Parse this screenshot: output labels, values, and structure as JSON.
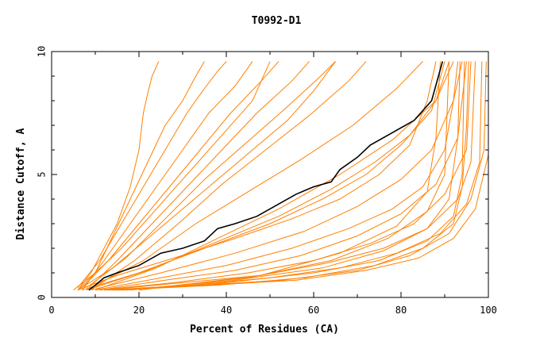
{
  "chart_data": {
    "type": "line",
    "title": "T0992-D1",
    "xlabel": "Percent of Residues (CA)",
    "ylabel": "Distance Cutoff, A",
    "xlim": [
      0,
      100
    ],
    "ylim": [
      0,
      10
    ],
    "xticks": [
      "0",
      "20",
      "40",
      "60",
      "80",
      "100"
    ],
    "yticks": [
      "0",
      "5",
      "10"
    ],
    "grid": false,
    "colors": {
      "background": "#ffffff",
      "series": "#ff8000",
      "highlight": "#000000",
      "axes": "#000000"
    },
    "highlight_series": {
      "points": [
        [
          8.5,
          0.3
        ],
        [
          10,
          0.5
        ],
        [
          12,
          0.8
        ],
        [
          15,
          1.0
        ],
        [
          20,
          1.3
        ],
        [
          25,
          1.8
        ],
        [
          30,
          2.0
        ],
        [
          35,
          2.3
        ],
        [
          38,
          2.8
        ],
        [
          42,
          3.0
        ],
        [
          47,
          3.3
        ],
        [
          52,
          3.8
        ],
        [
          56,
          4.2
        ],
        [
          60,
          4.5
        ],
        [
          64,
          4.7
        ],
        [
          66,
          5.2
        ],
        [
          70,
          5.7
        ],
        [
          73,
          6.2
        ],
        [
          78,
          6.7
        ],
        [
          83,
          7.2
        ],
        [
          87,
          8.0
        ],
        [
          89.5,
          9.6
        ]
      ]
    },
    "series": [
      {
        "points": [
          [
            6,
            0.3
          ],
          [
            9,
            1.0
          ],
          [
            12,
            2.0
          ],
          [
            15,
            3.0
          ],
          [
            18,
            4.5
          ],
          [
            20,
            6.0
          ],
          [
            21,
            7.5
          ],
          [
            22,
            8.3
          ],
          [
            23,
            9.0
          ],
          [
            24.5,
            9.6
          ]
        ]
      },
      {
        "points": [
          [
            6,
            0.3
          ],
          [
            10,
            1.0
          ],
          [
            14,
            2.5
          ],
          [
            18,
            4.0
          ],
          [
            22,
            5.5
          ],
          [
            26,
            7.0
          ],
          [
            30,
            8.0
          ],
          [
            33,
            9.0
          ],
          [
            35,
            9.6
          ]
        ]
      },
      {
        "points": [
          [
            6,
            0.4
          ],
          [
            11,
            1.5
          ],
          [
            16,
            3.0
          ],
          [
            21,
            4.5
          ],
          [
            26,
            6.0
          ],
          [
            31,
            7.5
          ],
          [
            35,
            8.5
          ],
          [
            38,
            9.2
          ],
          [
            40,
            9.6
          ]
        ]
      },
      {
        "points": [
          [
            7,
            0.3
          ],
          [
            12,
            1.5
          ],
          [
            18,
            3.0
          ],
          [
            24,
            4.5
          ],
          [
            30,
            6.0
          ],
          [
            36,
            7.5
          ],
          [
            42,
            8.6
          ],
          [
            46,
            9.6
          ]
        ]
      },
      {
        "points": [
          [
            7,
            0.4
          ],
          [
            13,
            1.5
          ],
          [
            20,
            3.0
          ],
          [
            27,
            4.5
          ],
          [
            34,
            6.0
          ],
          [
            41,
            7.5
          ],
          [
            48,
            8.8
          ],
          [
            52,
            9.6
          ]
        ]
      },
      {
        "points": [
          [
            8,
            0.3
          ],
          [
            15,
            1.5
          ],
          [
            23,
            3.0
          ],
          [
            31,
            4.5
          ],
          [
            39,
            6.0
          ],
          [
            47,
            7.5
          ],
          [
            55,
            8.8
          ],
          [
            59,
            9.6
          ]
        ]
      },
      {
        "points": [
          [
            8,
            0.4
          ],
          [
            17,
            1.6
          ],
          [
            26,
            3.2
          ],
          [
            35,
            4.8
          ],
          [
            44,
            6.2
          ],
          [
            53,
            7.6
          ],
          [
            61,
            8.9
          ],
          [
            65,
            9.6
          ]
        ]
      },
      {
        "points": [
          [
            9,
            0.3
          ],
          [
            19,
            1.5
          ],
          [
            29,
            3.0
          ],
          [
            39,
            4.6
          ],
          [
            49,
            6.0
          ],
          [
            59,
            7.4
          ],
          [
            68,
            8.8
          ],
          [
            72,
            9.6
          ]
        ]
      },
      {
        "points": [
          [
            9,
            0.4
          ],
          [
            21,
            1.5
          ],
          [
            33,
            3.0
          ],
          [
            45,
            4.3
          ],
          [
            57,
            5.6
          ],
          [
            69,
            7.0
          ],
          [
            79,
            8.5
          ],
          [
            85,
            9.6
          ]
        ]
      },
      {
        "points": [
          [
            10,
            0.3
          ],
          [
            24,
            1.2
          ],
          [
            38,
            2.4
          ],
          [
            52,
            3.6
          ],
          [
            66,
            5.0
          ],
          [
            78,
            6.4
          ],
          [
            88,
            8.0
          ],
          [
            92,
            9.6
          ]
        ]
      },
      {
        "points": [
          [
            10,
            0.3
          ],
          [
            25,
            0.8
          ],
          [
            40,
            1.3
          ],
          [
            55,
            2.0
          ],
          [
            68,
            2.8
          ],
          [
            78,
            3.6
          ],
          [
            85,
            4.5
          ],
          [
            90,
            6.0
          ],
          [
            92,
            8.0
          ],
          [
            93,
            9.6
          ]
        ]
      },
      {
        "points": [
          [
            11,
            0.3
          ],
          [
            26,
            0.7
          ],
          [
            42,
            1.1
          ],
          [
            57,
            1.7
          ],
          [
            70,
            2.5
          ],
          [
            80,
            3.4
          ],
          [
            88,
            4.6
          ],
          [
            93,
            6.5
          ],
          [
            95,
            9.6
          ]
        ]
      },
      {
        "points": [
          [
            11,
            0.3
          ],
          [
            28,
            0.6
          ],
          [
            45,
            1.0
          ],
          [
            60,
            1.5
          ],
          [
            73,
            2.2
          ],
          [
            83,
            3.0
          ],
          [
            90,
            4.2
          ],
          [
            95,
            6.0
          ],
          [
            96,
            9.6
          ]
        ]
      },
      {
        "points": [
          [
            12,
            0.3
          ],
          [
            30,
            0.6
          ],
          [
            48,
            0.9
          ],
          [
            63,
            1.4
          ],
          [
            76,
            2.0
          ],
          [
            86,
            2.8
          ],
          [
            93,
            4.0
          ],
          [
            96,
            5.5
          ],
          [
            97,
            9.6
          ]
        ]
      },
      {
        "points": [
          [
            12,
            0.3
          ],
          [
            32,
            0.5
          ],
          [
            50,
            0.8
          ],
          [
            66,
            1.2
          ],
          [
            79,
            1.8
          ],
          [
            89,
            2.6
          ],
          [
            95,
            3.8
          ],
          [
            98,
            5.5
          ],
          [
            98.5,
            9.6
          ]
        ]
      },
      {
        "points": [
          [
            13,
            0.3
          ],
          [
            34,
            0.5
          ],
          [
            53,
            0.7
          ],
          [
            70,
            1.1
          ],
          [
            82,
            1.7
          ],
          [
            91,
            2.6
          ],
          [
            96,
            4.0
          ],
          [
            99,
            6.0
          ],
          [
            99.5,
            9.6
          ]
        ]
      },
      {
        "points": [
          [
            14,
            0.3
          ],
          [
            36,
            0.5
          ],
          [
            56,
            0.7
          ],
          [
            72,
            1.1
          ],
          [
            84,
            1.6
          ],
          [
            92,
            2.4
          ],
          [
            97,
            3.6
          ],
          [
            100,
            5.8
          ],
          [
            100,
            9.6
          ]
        ]
      },
      {
        "points": [
          [
            15,
            0.3
          ],
          [
            38,
            0.5
          ],
          [
            58,
            0.8
          ],
          [
            74,
            1.3
          ],
          [
            85,
            2.0
          ],
          [
            92,
            3.0
          ],
          [
            94,
            4.5
          ],
          [
            95,
            7.0
          ],
          [
            95.5,
            9.6
          ]
        ]
      },
      {
        "points": [
          [
            16,
            0.3
          ],
          [
            40,
            0.6
          ],
          [
            60,
            1.0
          ],
          [
            75,
            1.5
          ],
          [
            86,
            2.3
          ],
          [
            92,
            3.3
          ],
          [
            94,
            5.0
          ],
          [
            94.5,
            9.6
          ]
        ]
      },
      {
        "points": [
          [
            17,
            0.3
          ],
          [
            42,
            0.7
          ],
          [
            62,
            1.2
          ],
          [
            76,
            1.9
          ],
          [
            86,
            2.8
          ],
          [
            91,
            4.0
          ],
          [
            93,
            6.5
          ],
          [
            93.5,
            9.6
          ]
        ]
      },
      {
        "points": [
          [
            18,
            0.3
          ],
          [
            45,
            0.8
          ],
          [
            64,
            1.5
          ],
          [
            77,
            2.4
          ],
          [
            86,
            3.5
          ],
          [
            90,
            5.0
          ],
          [
            91,
            9.6
          ]
        ]
      },
      {
        "points": [
          [
            20,
            0.3
          ],
          [
            48,
            0.9
          ],
          [
            66,
            1.8
          ],
          [
            79,
            2.9
          ],
          [
            86,
            4.3
          ],
          [
            88,
            6.5
          ],
          [
            89,
            9.6
          ]
        ]
      },
      {
        "points": [
          [
            7,
            0.3
          ],
          [
            20,
            1.0
          ],
          [
            35,
            2.0
          ],
          [
            50,
            3.0
          ],
          [
            62,
            4.0
          ],
          [
            72,
            5.0
          ],
          [
            80,
            6.2
          ],
          [
            87,
            7.6
          ],
          [
            90,
            9.6
          ]
        ]
      },
      {
        "points": [
          [
            8,
            0.3
          ],
          [
            22,
            1.1
          ],
          [
            37,
            2.2
          ],
          [
            52,
            3.3
          ],
          [
            64,
            4.4
          ],
          [
            74,
            5.5
          ],
          [
            82,
            6.6
          ],
          [
            88,
            8.0
          ],
          [
            91,
            9.6
          ]
        ]
      },
      {
        "points": [
          [
            9,
            0.3
          ],
          [
            25,
            1.0
          ],
          [
            42,
            1.8
          ],
          [
            58,
            2.7
          ],
          [
            70,
            3.7
          ],
          [
            80,
            4.8
          ],
          [
            87,
            6.0
          ],
          [
            92,
            8.0
          ],
          [
            94,
            9.6
          ]
        ]
      },
      {
        "points": [
          [
            6,
            0.3
          ],
          [
            14,
            1.2
          ],
          [
            22,
            2.4
          ],
          [
            30,
            3.6
          ],
          [
            38,
            4.8
          ],
          [
            46,
            6.0
          ],
          [
            54,
            7.2
          ],
          [
            60,
            8.4
          ],
          [
            65,
            9.6
          ]
        ]
      },
      {
        "points": [
          [
            5,
            0.3
          ],
          [
            10,
            1.0
          ],
          [
            16,
            2.0
          ],
          [
            22,
            3.2
          ],
          [
            28,
            4.4
          ],
          [
            34,
            5.6
          ],
          [
            40,
            6.8
          ],
          [
            46,
            8.0
          ],
          [
            50,
            9.6
          ]
        ]
      },
      {
        "points": [
          [
            6,
            0.3
          ],
          [
            15,
            0.9
          ],
          [
            28,
            1.6
          ],
          [
            42,
            2.4
          ],
          [
            55,
            3.2
          ],
          [
            66,
            4.0
          ],
          [
            75,
            5.0
          ],
          [
            82,
            6.2
          ],
          [
            86,
            8.0
          ],
          [
            88,
            9.6
          ]
        ]
      }
    ]
  }
}
